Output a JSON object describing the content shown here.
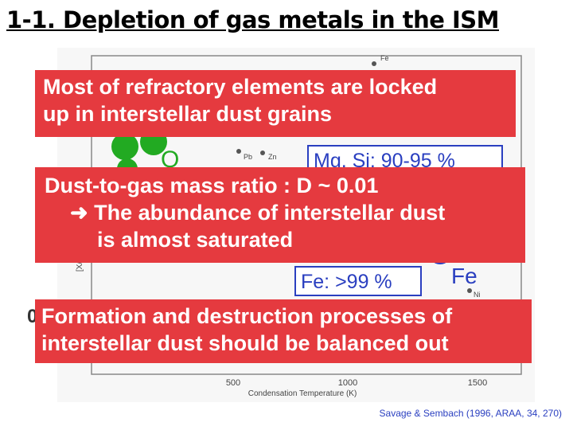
{
  "header": {
    "title": "1-1. Depletion of gas metals in the ISM"
  },
  "plot": {
    "x_axis_label": "Condensation Temperature (K)",
    "y_axis_label": "[X/H]",
    "x_tick_labels": [
      "500",
      "1000",
      "1500"
    ],
    "element_labels": [
      "Fe",
      "Pb",
      "Zn",
      "Ni"
    ],
    "oxygen_label": "O",
    "iron_label": "Fe",
    "y_value_label": "0"
  },
  "boxes": [
    {
      "lines": [
        "Most of refractory elements are locked",
        "up in interstellar dust grains"
      ]
    },
    {
      "lines": [
        "Dust-to-gas mass ratio : D ~ 0.01",
        "➜ The abundance of interstellar dust",
        "is almost saturated"
      ]
    },
    {
      "lines": [
        "Formation and destruction processes of",
        "interstellar dust should be balanced out"
      ]
    }
  ],
  "callouts": {
    "mg_si": "Mg, Si: 90-95 %",
    "fe": "Fe: >99 %"
  },
  "citation": "Savage & Sembach (1996, ARAA, 34, 270)"
}
